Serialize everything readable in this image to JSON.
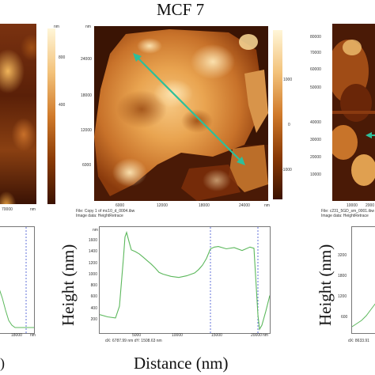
{
  "figure_title": "MCF 7",
  "left_panel": {
    "colorbar_ticks": [
      "800",
      "400"
    ],
    "x_tick": "70000",
    "x_unit": "nm",
    "y_unit": "nm",
    "plot_x_tick": "18000",
    "plot_x_unit": "nm",
    "x_axis_label_fragment": ")"
  },
  "center_panel": {
    "y_unit": "nm",
    "x_unit": "nm",
    "y_ticks": [
      "24000",
      "18000",
      "12000",
      "6000"
    ],
    "x_ticks": [
      "6000",
      "12000",
      "18000",
      "24000"
    ],
    "colorbar_ticks": [
      "1000",
      "0",
      "-1000"
    ],
    "file_line": "File: Copy 1 of mc10_d_0004.ibw",
    "image_line": "Image data: HeightRetrace",
    "colors": {
      "profile_line": "#2dbf9a",
      "curve": "#5cb85c",
      "cursor": "#3a4fd0"
    }
  },
  "right_panel": {
    "y_ticks": [
      "80000",
      "70000",
      "60000",
      "50000",
      "40000",
      "30000",
      "20000",
      "10000"
    ],
    "x_ticks": [
      "10000",
      "2000"
    ],
    "file_line": "File: c231_5GD_sm_0001.ibw",
    "image_line": "Image data: HeightRetrace",
    "plot_y_ticks": [
      "3200",
      "1800",
      "1200",
      "600"
    ],
    "plot_x_tick_fragment": "dX: 8633.91"
  },
  "profile_plot": {
    "y_unit": "nm",
    "x_unit": "nm",
    "footer": "dX: 6787.99 nm  dY: 1508.63 nm",
    "y_axis_label": "Height (nm)",
    "x_axis_label": "Distance (nm)",
    "left_y_axis_label": "Height (nm)"
  },
  "chart_data": {
    "type": "line",
    "xlabel": "Distance (nm)",
    "ylabel": "Height (nm)",
    "xlim": [
      0,
      21500
    ],
    "ylim": [
      0,
      1800
    ],
    "x_ticks": [
      5000,
      10000,
      15000,
      20000
    ],
    "y_ticks": [
      200,
      400,
      600,
      800,
      1000,
      1200,
      1400,
      1600
    ],
    "cursors_x": [
      14000,
      20000
    ],
    "series": [
      {
        "x": [
          0,
          1000,
          2000,
          2500,
          3000,
          3200,
          3400,
          3700,
          4000,
          4500,
          5000,
          5500,
          6000,
          6500,
          7000,
          7500,
          8000,
          9000,
          10000,
          11000,
          12000,
          12500,
          13000,
          13500,
          14000,
          14500,
          15000,
          16000,
          17000,
          18000,
          19000,
          19500,
          20000,
          20200,
          20500,
          21000,
          21500
        ],
        "y": [
          300,
          260,
          240,
          450,
          1300,
          1680,
          1760,
          1600,
          1450,
          1420,
          1380,
          1320,
          1260,
          1200,
          1130,
          1050,
          1020,
          980,
          960,
          990,
          1040,
          1100,
          1180,
          1300,
          1470,
          1500,
          1510,
          1470,
          1490,
          1440,
          1500,
          1480,
          300,
          40,
          110,
          360,
          640
        ]
      }
    ]
  }
}
